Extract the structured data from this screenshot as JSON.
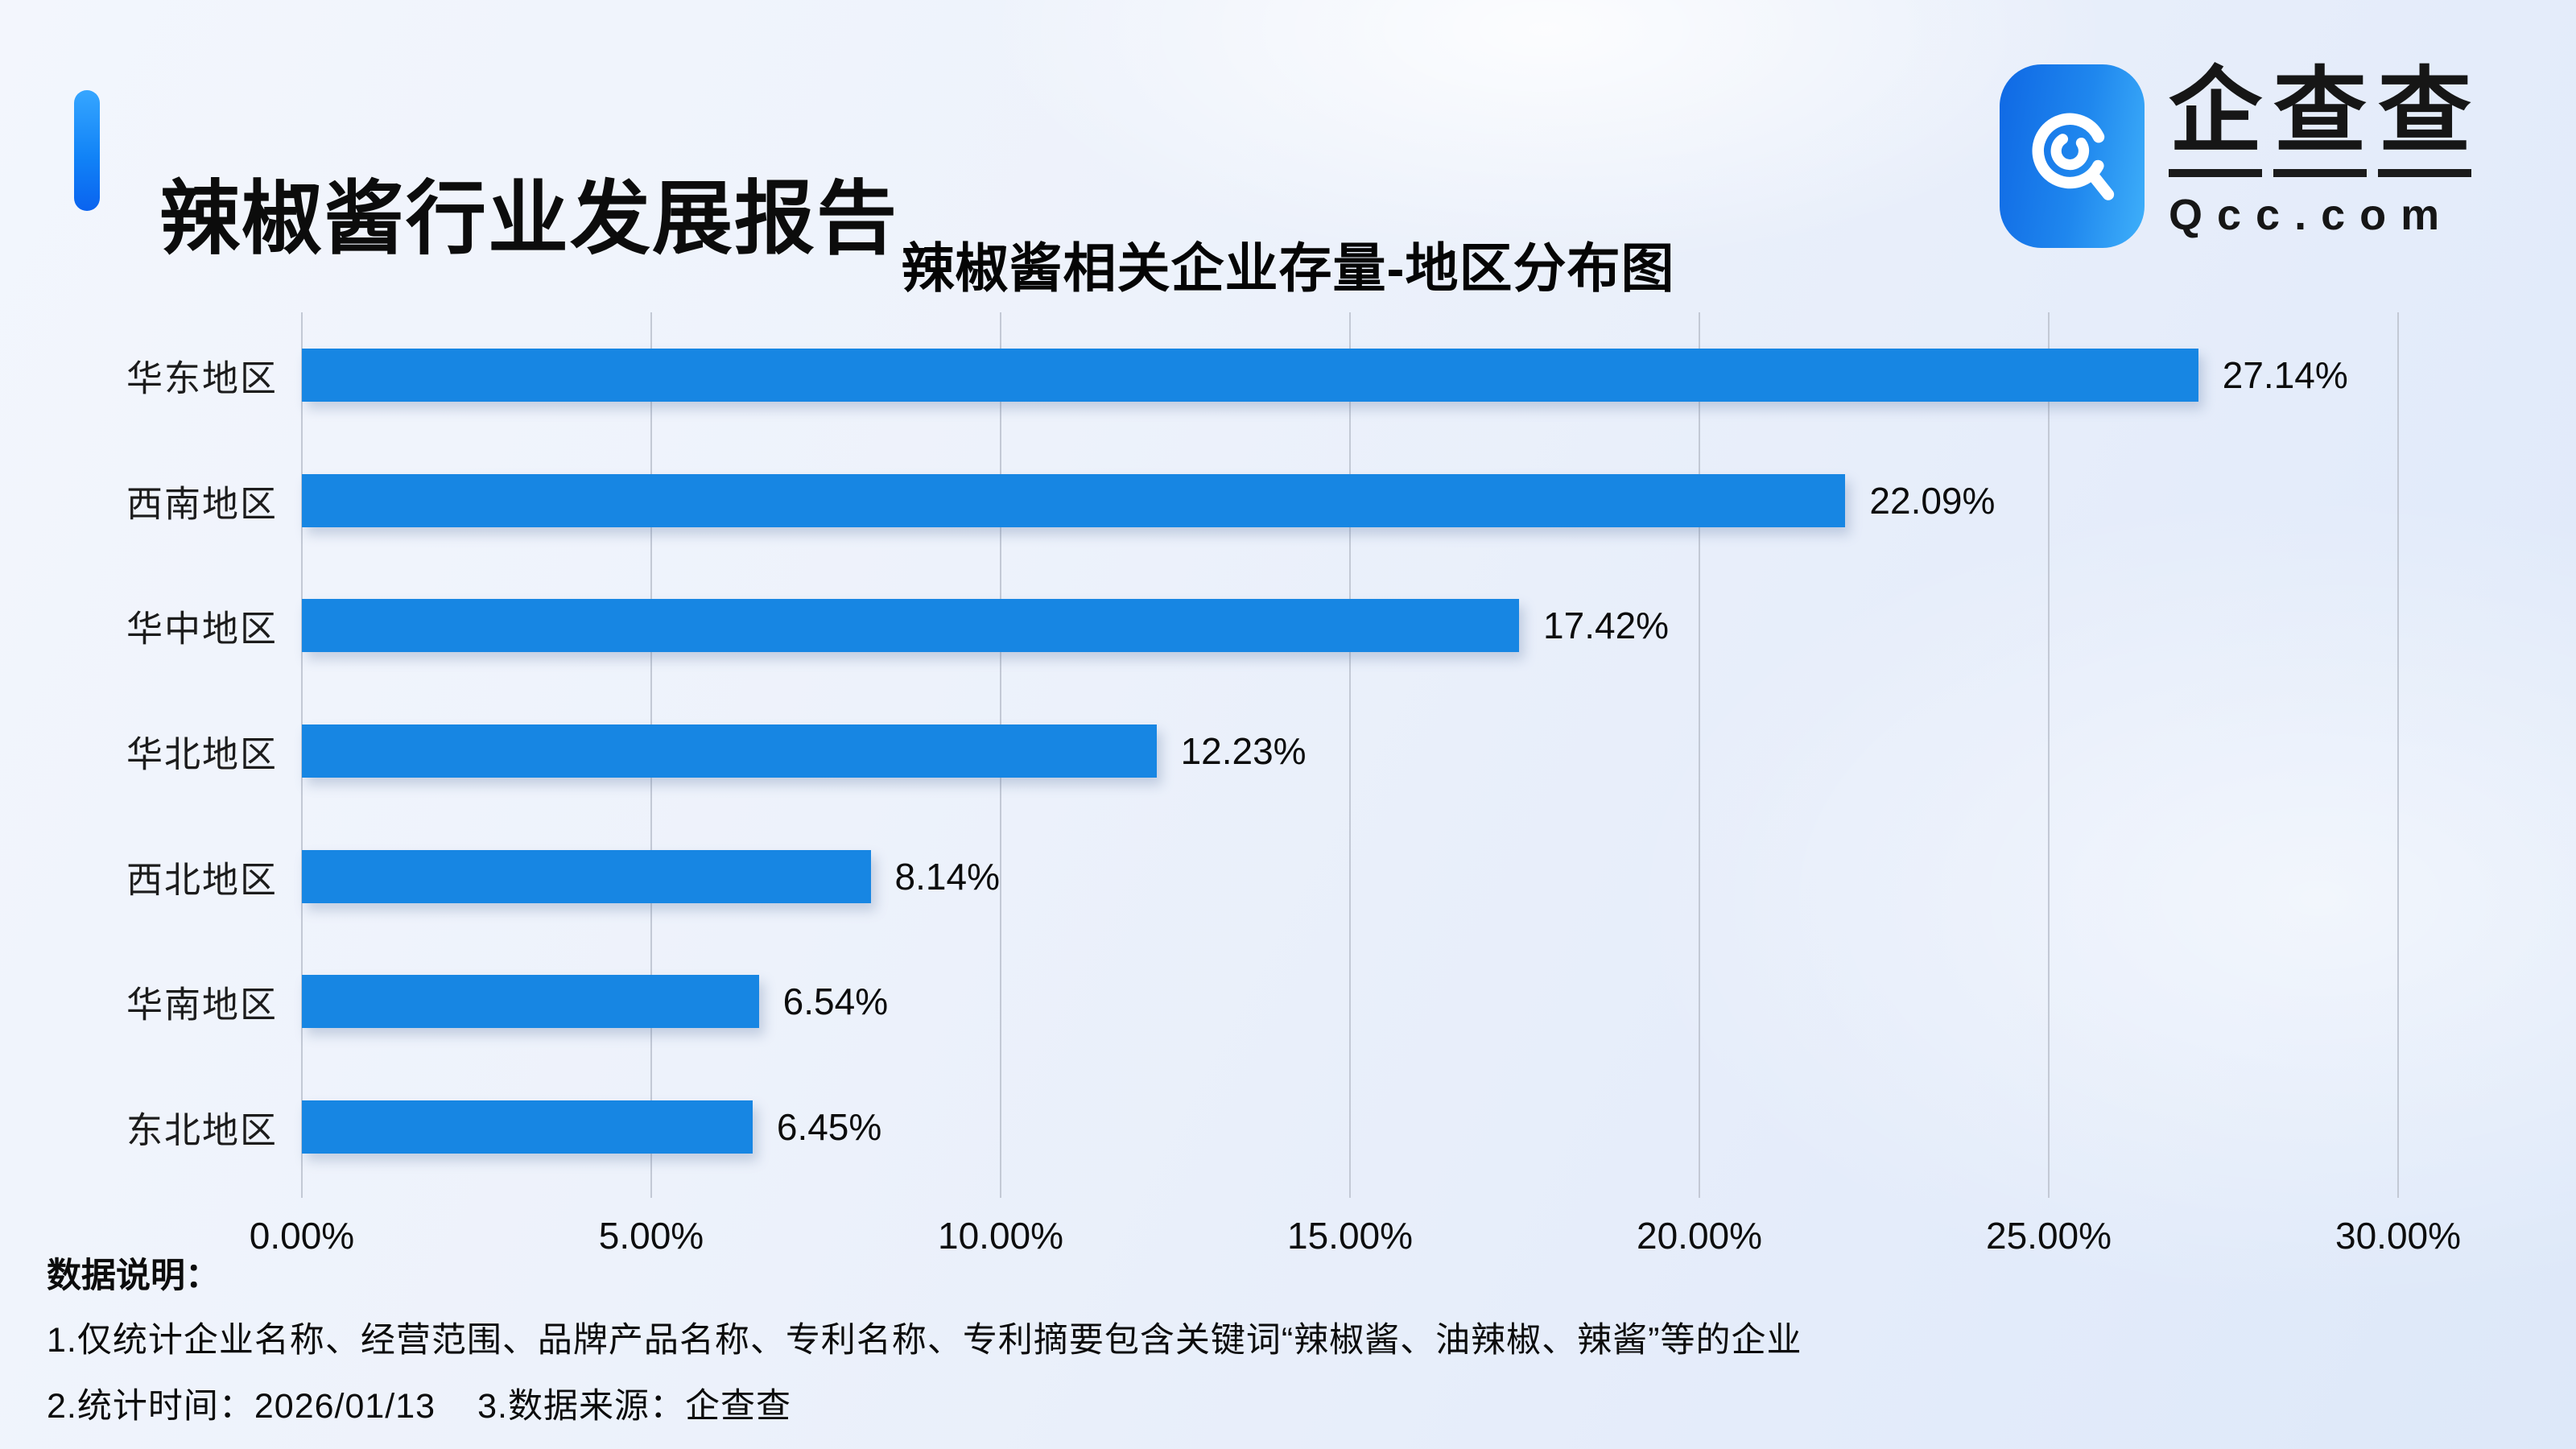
{
  "header": {
    "title": "辣椒酱行业发展报告"
  },
  "logo": {
    "brand": "企查查",
    "domain": "Qcc.com",
    "icon": "qcc-magnifier-icon"
  },
  "chart_data": {
    "type": "bar",
    "orientation": "horizontal",
    "title": "辣椒酱相关企业存量-地区分布图",
    "categories": [
      "华东地区",
      "西南地区",
      "华中地区",
      "华北地区",
      "西北地区",
      "华南地区",
      "东北地区"
    ],
    "values": [
      27.14,
      22.09,
      17.42,
      12.23,
      8.14,
      6.54,
      6.45
    ],
    "value_labels": [
      "27.14%",
      "22.09%",
      "17.42%",
      "12.23%",
      "8.14%",
      "6.54%",
      "6.45%"
    ],
    "x_tick_labels": [
      "0.00%",
      "5.00%",
      "10.00%",
      "15.00%",
      "20.00%",
      "25.00%",
      "30.00%"
    ],
    "x_tick_values": [
      0,
      5,
      10,
      15,
      20,
      25,
      30
    ],
    "xlim": [
      0,
      30
    ],
    "grid": true,
    "legend_position": "none",
    "bar_color": "#1786E3",
    "gridline_color": "#C3C9D5"
  },
  "footnotes": {
    "heading": "数据说明：",
    "line1": "1.仅统计企业名称、经营范围、品牌产品名称、专利名称、专利摘要包含关键词“辣椒酱、油辣椒、辣酱”等的企业",
    "line2_time": "2.统计时间：2026/01/13",
    "line2_source": "3.数据来源：企查查"
  },
  "colors": {
    "accent_gradient_top": "#36A6FF",
    "accent_gradient_bottom": "#0A63EF",
    "icon_gradient_left": "#0F68E4",
    "icon_gradient_right": "#3FB0FA",
    "bar": "#1786E3",
    "text": "#0C0C0C"
  }
}
